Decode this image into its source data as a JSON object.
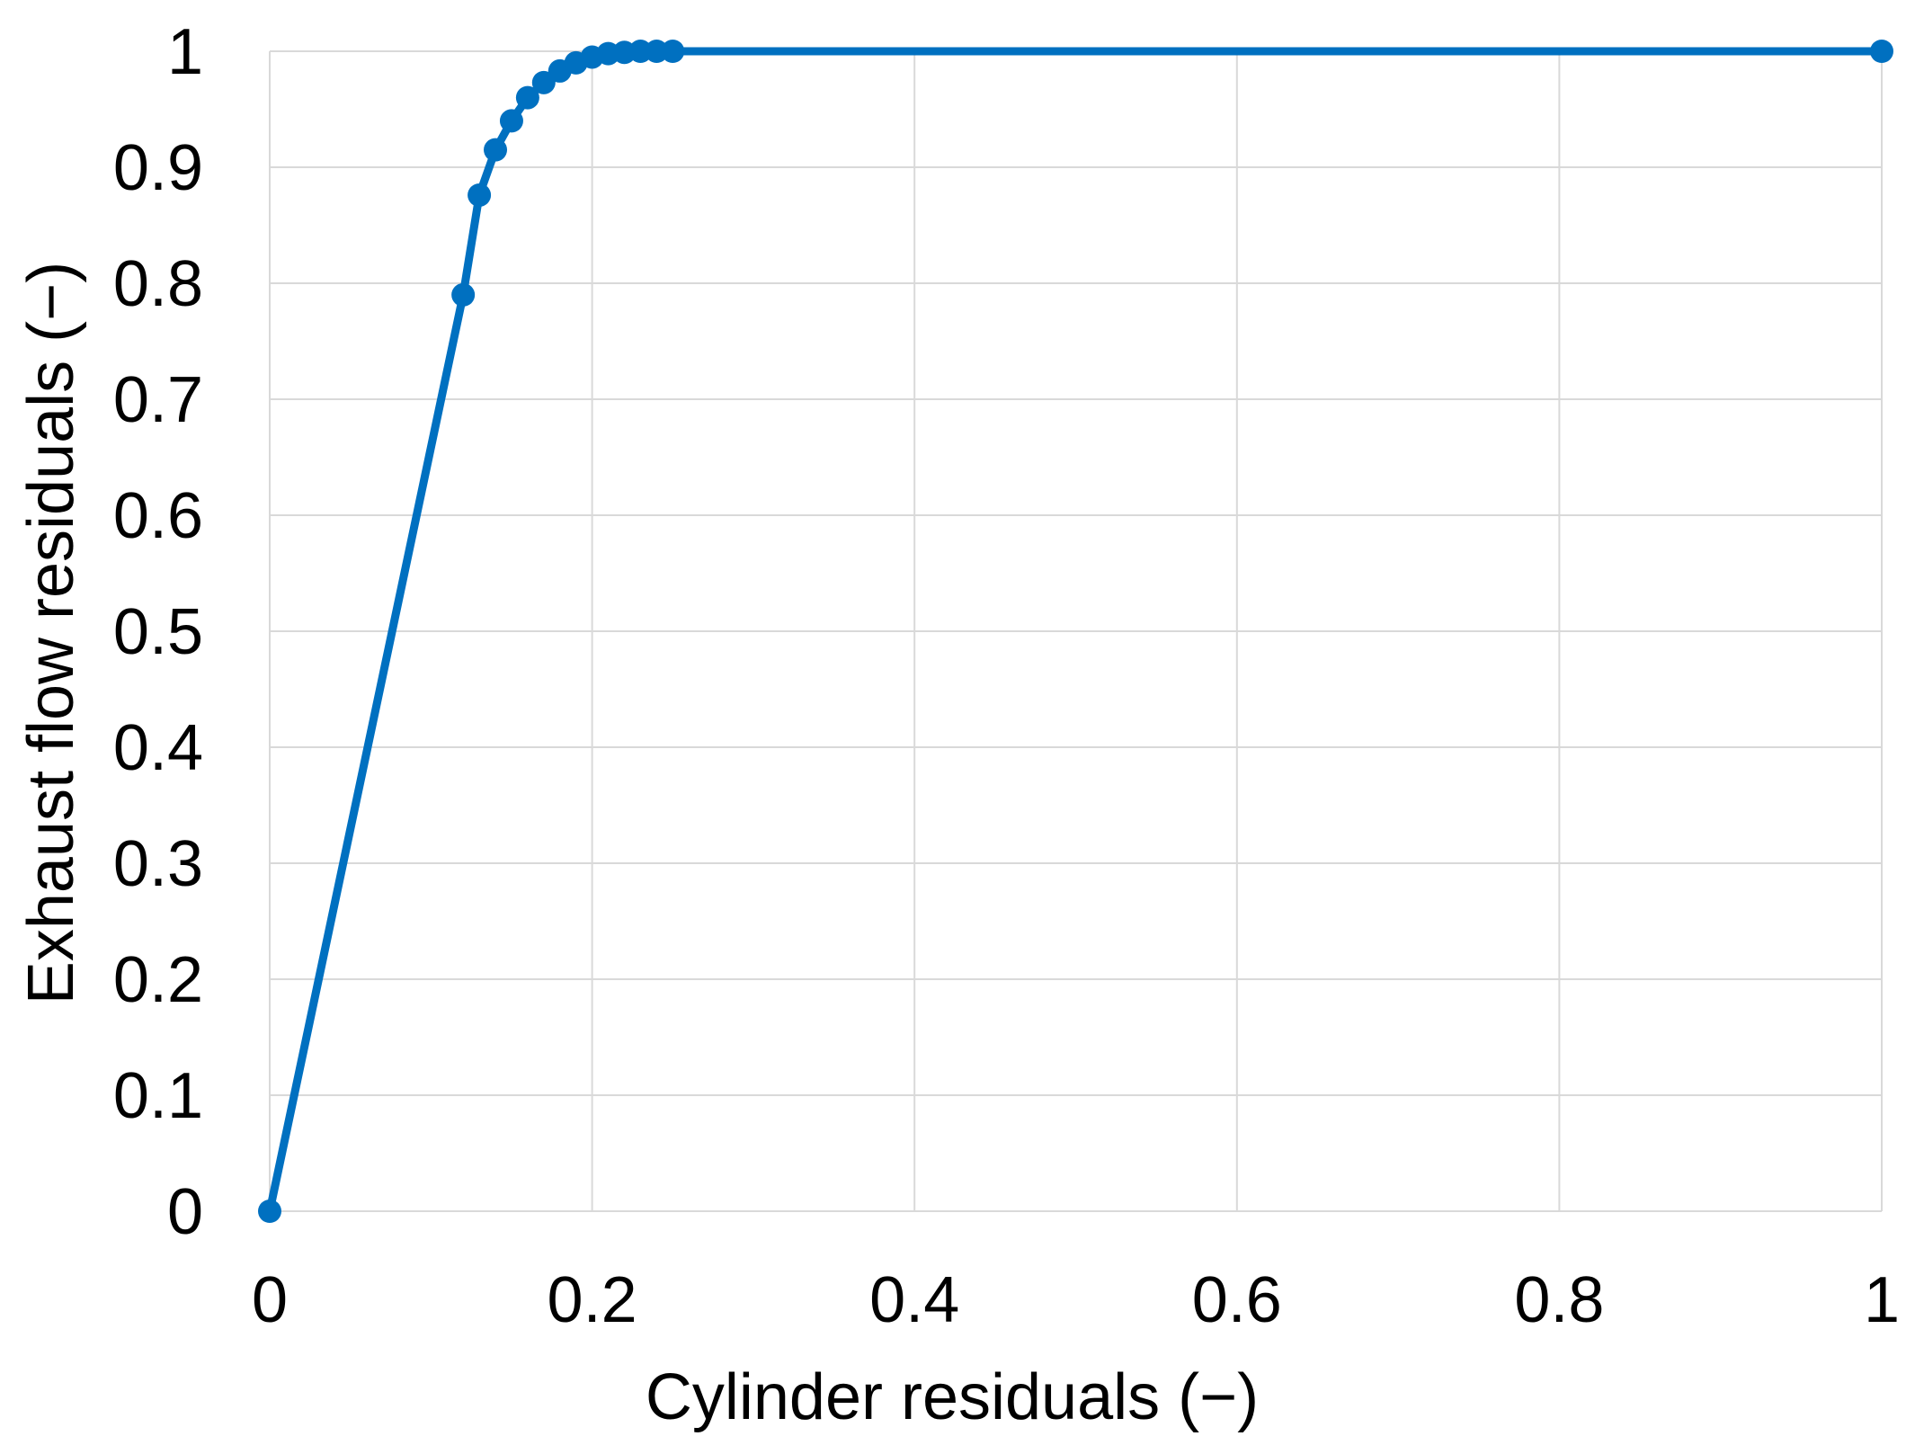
{
  "colors": {
    "series": "#0070c0",
    "grid": "#d9d9d9",
    "text": "#000000"
  },
  "chart_data": {
    "type": "scatter",
    "title": "",
    "xlabel": "Cylinder residuals (−)",
    "ylabel": "Exhaust flow residuals (−)",
    "xlim": [
      0,
      1
    ],
    "ylim": [
      0,
      1
    ],
    "x_ticks": [
      "0",
      "0.2",
      "0.4",
      "0.6",
      "0.8",
      "1"
    ],
    "y_ticks": [
      "0",
      "0.1",
      "0.2",
      "0.3",
      "0.4",
      "0.5",
      "0.6",
      "0.7",
      "0.8",
      "0.9",
      "1"
    ],
    "grid": true,
    "legend": "none",
    "series": [
      {
        "x": [
          0,
          0.12,
          0.13,
          0.14,
          0.15,
          0.16,
          0.17,
          0.18,
          0.19,
          0.2,
          0.21,
          0.22,
          0.23,
          0.24,
          0.25,
          1.0
        ],
        "y": [
          0,
          0.79,
          0.876,
          0.915,
          0.94,
          0.96,
          0.973,
          0.983,
          0.99,
          0.995,
          0.998,
          0.999,
          1.0,
          1.0,
          1.0,
          1.0
        ]
      }
    ]
  }
}
